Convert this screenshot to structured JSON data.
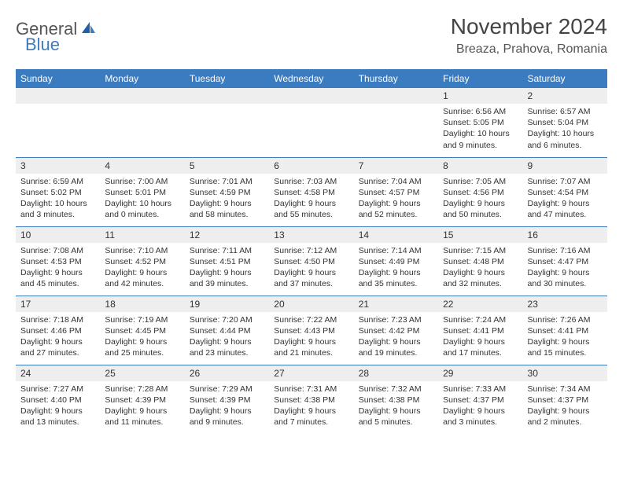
{
  "logo": {
    "text_gray": "General",
    "text_blue": "Blue"
  },
  "title": "November 2024",
  "location": "Breaza, Prahova, Romania",
  "colors": {
    "header_bg": "#3b7bbf",
    "header_fg": "#ffffff",
    "daynum_bg": "#eeeeee",
    "border": "#3b7bbf",
    "text": "#333333"
  },
  "day_headers": [
    "Sunday",
    "Monday",
    "Tuesday",
    "Wednesday",
    "Thursday",
    "Friday",
    "Saturday"
  ],
  "weeks": [
    [
      null,
      null,
      null,
      null,
      null,
      {
        "n": "1",
        "sr": "6:56 AM",
        "ss": "5:05 PM",
        "dl": "10 hours and 9 minutes."
      },
      {
        "n": "2",
        "sr": "6:57 AM",
        "ss": "5:04 PM",
        "dl": "10 hours and 6 minutes."
      }
    ],
    [
      {
        "n": "3",
        "sr": "6:59 AM",
        "ss": "5:02 PM",
        "dl": "10 hours and 3 minutes."
      },
      {
        "n": "4",
        "sr": "7:00 AM",
        "ss": "5:01 PM",
        "dl": "10 hours and 0 minutes."
      },
      {
        "n": "5",
        "sr": "7:01 AM",
        "ss": "4:59 PM",
        "dl": "9 hours and 58 minutes."
      },
      {
        "n": "6",
        "sr": "7:03 AM",
        "ss": "4:58 PM",
        "dl": "9 hours and 55 minutes."
      },
      {
        "n": "7",
        "sr": "7:04 AM",
        "ss": "4:57 PM",
        "dl": "9 hours and 52 minutes."
      },
      {
        "n": "8",
        "sr": "7:05 AM",
        "ss": "4:56 PM",
        "dl": "9 hours and 50 minutes."
      },
      {
        "n": "9",
        "sr": "7:07 AM",
        "ss": "4:54 PM",
        "dl": "9 hours and 47 minutes."
      }
    ],
    [
      {
        "n": "10",
        "sr": "7:08 AM",
        "ss": "4:53 PM",
        "dl": "9 hours and 45 minutes."
      },
      {
        "n": "11",
        "sr": "7:10 AM",
        "ss": "4:52 PM",
        "dl": "9 hours and 42 minutes."
      },
      {
        "n": "12",
        "sr": "7:11 AM",
        "ss": "4:51 PM",
        "dl": "9 hours and 39 minutes."
      },
      {
        "n": "13",
        "sr": "7:12 AM",
        "ss": "4:50 PM",
        "dl": "9 hours and 37 minutes."
      },
      {
        "n": "14",
        "sr": "7:14 AM",
        "ss": "4:49 PM",
        "dl": "9 hours and 35 minutes."
      },
      {
        "n": "15",
        "sr": "7:15 AM",
        "ss": "4:48 PM",
        "dl": "9 hours and 32 minutes."
      },
      {
        "n": "16",
        "sr": "7:16 AM",
        "ss": "4:47 PM",
        "dl": "9 hours and 30 minutes."
      }
    ],
    [
      {
        "n": "17",
        "sr": "7:18 AM",
        "ss": "4:46 PM",
        "dl": "9 hours and 27 minutes."
      },
      {
        "n": "18",
        "sr": "7:19 AM",
        "ss": "4:45 PM",
        "dl": "9 hours and 25 minutes."
      },
      {
        "n": "19",
        "sr": "7:20 AM",
        "ss": "4:44 PM",
        "dl": "9 hours and 23 minutes."
      },
      {
        "n": "20",
        "sr": "7:22 AM",
        "ss": "4:43 PM",
        "dl": "9 hours and 21 minutes."
      },
      {
        "n": "21",
        "sr": "7:23 AM",
        "ss": "4:42 PM",
        "dl": "9 hours and 19 minutes."
      },
      {
        "n": "22",
        "sr": "7:24 AM",
        "ss": "4:41 PM",
        "dl": "9 hours and 17 minutes."
      },
      {
        "n": "23",
        "sr": "7:26 AM",
        "ss": "4:41 PM",
        "dl": "9 hours and 15 minutes."
      }
    ],
    [
      {
        "n": "24",
        "sr": "7:27 AM",
        "ss": "4:40 PM",
        "dl": "9 hours and 13 minutes."
      },
      {
        "n": "25",
        "sr": "7:28 AM",
        "ss": "4:39 PM",
        "dl": "9 hours and 11 minutes."
      },
      {
        "n": "26",
        "sr": "7:29 AM",
        "ss": "4:39 PM",
        "dl": "9 hours and 9 minutes."
      },
      {
        "n": "27",
        "sr": "7:31 AM",
        "ss": "4:38 PM",
        "dl": "9 hours and 7 minutes."
      },
      {
        "n": "28",
        "sr": "7:32 AM",
        "ss": "4:38 PM",
        "dl": "9 hours and 5 minutes."
      },
      {
        "n": "29",
        "sr": "7:33 AM",
        "ss": "4:37 PM",
        "dl": "9 hours and 3 minutes."
      },
      {
        "n": "30",
        "sr": "7:34 AM",
        "ss": "4:37 PM",
        "dl": "9 hours and 2 minutes."
      }
    ]
  ],
  "labels": {
    "sunrise": "Sunrise:",
    "sunset": "Sunset:",
    "daylight": "Daylight:"
  }
}
